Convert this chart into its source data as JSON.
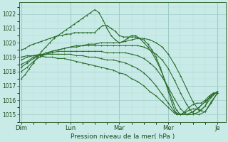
{
  "bg_color": "#c8ebe8",
  "grid_color_major": "#a0ccc8",
  "grid_color_minor": "#b8dcd8",
  "line_color": "#2d6e2d",
  "ylabel_text": "Pression niveau de la mer( hPa )",
  "ylim": [
    1014.5,
    1022.8
  ],
  "yticks": [
    1015,
    1016,
    1017,
    1018,
    1019,
    1020,
    1021,
    1022
  ],
  "x_day_labels": [
    "Dim",
    "Lun",
    "Mar",
    "Mer",
    "Je"
  ],
  "x_day_positions": [
    0,
    24,
    48,
    72,
    96
  ],
  "xlim": [
    -1,
    100
  ],
  "series": [
    {
      "x": [
        0,
        2,
        4,
        6,
        8,
        10,
        12,
        14,
        16,
        18,
        20,
        22,
        24,
        26,
        28,
        30,
        32,
        34,
        36,
        38,
        40,
        42,
        44,
        46,
        48,
        50,
        52,
        54,
        56,
        58,
        60,
        62,
        64,
        66,
        68,
        70,
        72,
        74,
        76,
        78,
        80,
        82,
        84,
        86,
        88,
        90,
        92,
        94,
        96
      ],
      "y": [
        1017.5,
        1017.8,
        1018.2,
        1018.6,
        1019.0,
        1019.4,
        1019.7,
        1020.0,
        1020.3,
        1020.5,
        1020.7,
        1020.9,
        1021.1,
        1021.3,
        1021.5,
        1021.7,
        1021.9,
        1022.1,
        1022.3,
        1022.1,
        1021.6,
        1021.0,
        1020.5,
        1020.2,
        1020.0,
        1020.1,
        1020.3,
        1020.5,
        1020.5,
        1020.3,
        1020.0,
        1019.7,
        1019.3,
        1018.8,
        1018.2,
        1017.5,
        1016.8,
        1016.0,
        1015.3,
        1015.0,
        1015.1,
        1015.3,
        1015.4,
        1015.4,
        1015.3,
        1015.6,
        1016.2,
        1016.5,
        1016.5
      ]
    },
    {
      "x": [
        0,
        3,
        6,
        9,
        12,
        15,
        18,
        21,
        24,
        27,
        30,
        33,
        36,
        39,
        42,
        45,
        48,
        51,
        54,
        57,
        60,
        63,
        66,
        69,
        72,
        75,
        78,
        81,
        84,
        87,
        90,
        93,
        96
      ],
      "y": [
        1018.0,
        1018.3,
        1018.7,
        1019.0,
        1019.2,
        1019.4,
        1019.5,
        1019.6,
        1019.7,
        1019.8,
        1019.8,
        1019.9,
        1019.9,
        1020.0,
        1020.0,
        1020.0,
        1020.0,
        1020.1,
        1020.2,
        1020.3,
        1020.3,
        1020.2,
        1020.0,
        1019.7,
        1019.2,
        1018.5,
        1017.7,
        1016.8,
        1015.9,
        1015.3,
        1015.2,
        1015.8,
        1016.5
      ]
    },
    {
      "x": [
        0,
        3,
        6,
        9,
        12,
        15,
        18,
        21,
        24,
        27,
        30,
        33,
        36,
        39,
        42,
        45,
        48,
        51,
        54,
        57,
        60,
        63,
        66,
        69,
        72,
        75,
        78,
        81,
        84,
        87,
        90,
        93,
        96
      ],
      "y": [
        1018.3,
        1018.6,
        1018.9,
        1019.1,
        1019.3,
        1019.4,
        1019.5,
        1019.6,
        1019.7,
        1019.7,
        1019.8,
        1019.8,
        1019.8,
        1019.8,
        1019.8,
        1019.8,
        1019.8,
        1019.8,
        1019.8,
        1019.8,
        1019.7,
        1019.5,
        1019.2,
        1018.8,
        1018.2,
        1017.4,
        1016.5,
        1015.7,
        1015.1,
        1015.0,
        1015.2,
        1015.9,
        1016.5
      ]
    },
    {
      "x": [
        0,
        3,
        6,
        9,
        12,
        15,
        18,
        21,
        24,
        27,
        30,
        33,
        36,
        39,
        42,
        45,
        48,
        51,
        54,
        57,
        60,
        63,
        66,
        69,
        72,
        75,
        78,
        81,
        84,
        87,
        90,
        93,
        96
      ],
      "y": [
        1018.5,
        1018.7,
        1019.0,
        1019.1,
        1019.2,
        1019.3,
        1019.4,
        1019.4,
        1019.4,
        1019.4,
        1019.4,
        1019.4,
        1019.4,
        1019.4,
        1019.3,
        1019.3,
        1019.3,
        1019.3,
        1019.2,
        1019.1,
        1018.9,
        1018.6,
        1018.2,
        1017.6,
        1016.9,
        1016.1,
        1015.4,
        1015.0,
        1015.0,
        1015.2,
        1015.6,
        1016.2,
        1016.6
      ]
    },
    {
      "x": [
        0,
        3,
        6,
        9,
        12,
        15,
        18,
        21,
        24,
        27,
        30,
        33,
        36,
        39,
        42,
        45,
        48,
        51,
        54,
        57,
        60,
        63,
        66,
        69,
        72,
        75,
        78,
        81,
        84,
        87,
        90,
        93,
        96
      ],
      "y": [
        1018.8,
        1019.0,
        1019.1,
        1019.2,
        1019.2,
        1019.2,
        1019.2,
        1019.2,
        1019.2,
        1019.1,
        1019.1,
        1019.0,
        1019.0,
        1018.9,
        1018.8,
        1018.8,
        1018.7,
        1018.6,
        1018.4,
        1018.2,
        1017.9,
        1017.5,
        1017.0,
        1016.4,
        1015.8,
        1015.2,
        1015.0,
        1015.0,
        1015.2,
        1015.5,
        1015.9,
        1016.3,
        1016.6
      ]
    },
    {
      "x": [
        0,
        3,
        6,
        9,
        12,
        15,
        18,
        21,
        24,
        27,
        30,
        33,
        36,
        39,
        42,
        45,
        48,
        51,
        54,
        57,
        60,
        63,
        66,
        69,
        72,
        75,
        78,
        81,
        84,
        87,
        90,
        93,
        96
      ],
      "y": [
        1019.0,
        1019.1,
        1019.1,
        1019.1,
        1019.0,
        1019.0,
        1018.9,
        1018.9,
        1018.8,
        1018.7,
        1018.6,
        1018.5,
        1018.4,
        1018.3,
        1018.2,
        1018.1,
        1017.9,
        1017.8,
        1017.5,
        1017.3,
        1017.0,
        1016.6,
        1016.3,
        1015.9,
        1015.5,
        1015.1,
        1015.0,
        1015.0,
        1015.2,
        1015.5,
        1015.9,
        1016.3,
        1016.6
      ]
    },
    {
      "x": [
        0,
        2,
        4,
        6,
        8,
        10,
        12,
        14,
        16,
        18,
        20,
        22,
        24,
        26,
        28,
        30,
        32,
        34,
        36,
        38,
        40,
        42,
        44,
        46,
        48,
        50,
        52,
        54,
        56,
        58,
        60,
        62,
        64,
        66,
        68,
        70,
        72,
        74,
        76,
        78,
        80,
        82,
        84,
        86,
        88,
        90,
        92,
        94,
        96
      ],
      "y": [
        1019.5,
        1019.6,
        1019.8,
        1019.9,
        1020.0,
        1020.1,
        1020.2,
        1020.3,
        1020.4,
        1020.5,
        1020.5,
        1020.6,
        1020.6,
        1020.7,
        1020.7,
        1020.7,
        1020.7,
        1020.7,
        1020.7,
        1021.0,
        1021.2,
        1021.2,
        1021.0,
        1020.8,
        1020.5,
        1020.4,
        1020.4,
        1020.4,
        1020.4,
        1020.3,
        1020.2,
        1019.9,
        1019.5,
        1019.0,
        1018.3,
        1017.5,
        1016.6,
        1015.7,
        1015.0,
        1015.0,
        1015.2,
        1015.5,
        1015.7,
        1015.8,
        1015.8,
        1016.0,
        1016.3,
        1016.5,
        1016.5
      ]
    }
  ]
}
